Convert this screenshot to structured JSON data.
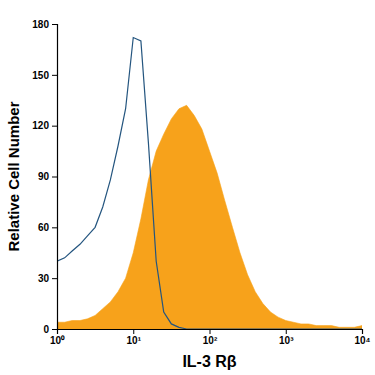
{
  "chart_data": {
    "type": "area",
    "x_label": "IL-3 Rβ",
    "y_label": "Relative Cell Number",
    "log": "x",
    "x": [
      1,
      1.26,
      1.58,
      2,
      2.51,
      3.16,
      3.98,
      5.01,
      6.31,
      7.94,
      10,
      12.6,
      15.8,
      20,
      25.1,
      31.6,
      39.8,
      50.1,
      63.1,
      79.4,
      100,
      126,
      158,
      200,
      251,
      316,
      398,
      501,
      631,
      794,
      1000,
      1259,
      1585,
      1995,
      2512,
      3162,
      3981,
      5012,
      6310,
      7943,
      10000
    ],
    "series": [
      {
        "type": "area",
        "color": "#f7a21b",
        "values": [
          4,
          4,
          5,
          5,
          6,
          8,
          12,
          16,
          22,
          30,
          45,
          65,
          88,
          105,
          115,
          124,
          130,
          132,
          126,
          118,
          105,
          92,
          76,
          60,
          45,
          32,
          22,
          15,
          10,
          7,
          5,
          4,
          3,
          3,
          2,
          2,
          2,
          1,
          1,
          1,
          2
        ]
      },
      {
        "type": "line",
        "color": "#24557f",
        "values": [
          40,
          42,
          46,
          50,
          55,
          60,
          72,
          88,
          108,
          130,
          172,
          170,
          110,
          40,
          10,
          3,
          1,
          0,
          0,
          0,
          0,
          0,
          0,
          0,
          0,
          0,
          0,
          0,
          0,
          0,
          0,
          0,
          0,
          0,
          0,
          0,
          0,
          0,
          0,
          0,
          0
        ]
      }
    ],
    "xlim": [
      1,
      10000
    ],
    "xticks": [
      {
        "value": 1,
        "label": "10⁰"
      },
      {
        "value": 10,
        "label": "10¹"
      },
      {
        "value": 100,
        "label": "10²"
      },
      {
        "value": 1000,
        "label": "10³"
      },
      {
        "value": 10000,
        "label": "10⁴"
      }
    ],
    "ylim": [
      0,
      180
    ],
    "yticks": [
      0,
      30,
      60,
      90,
      120,
      150,
      180
    ]
  }
}
